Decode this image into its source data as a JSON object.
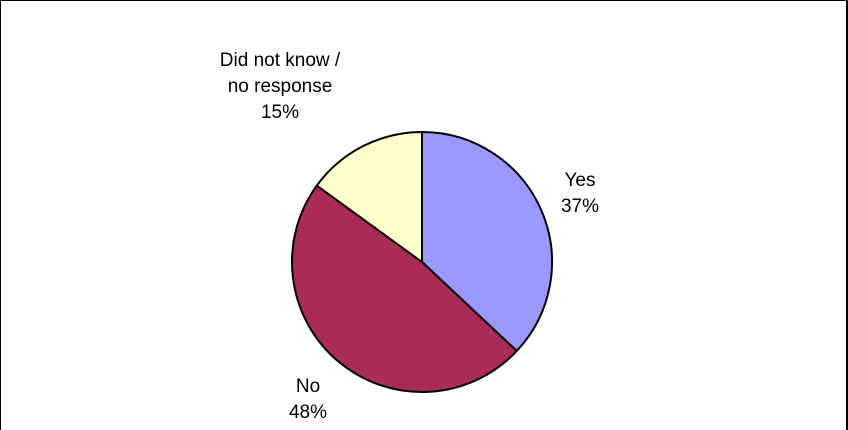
{
  "chart_data": {
    "type": "pie",
    "title": "",
    "slices": [
      {
        "label": "Yes",
        "value": 37,
        "value_label": "37%",
        "color": "#9999ff"
      },
      {
        "label": "No",
        "value": 48,
        "value_label": "48%",
        "color": "#aa2b58"
      },
      {
        "label_lines": [
          "Did not know /",
          "no response"
        ],
        "label": "Did not know / no response",
        "value": 15,
        "value_label": "15%",
        "color": "#ffffcc"
      }
    ],
    "start_angle": "12 o'clock",
    "direction": "clockwise",
    "legend": "none",
    "slice_outline_color": "#000000"
  }
}
